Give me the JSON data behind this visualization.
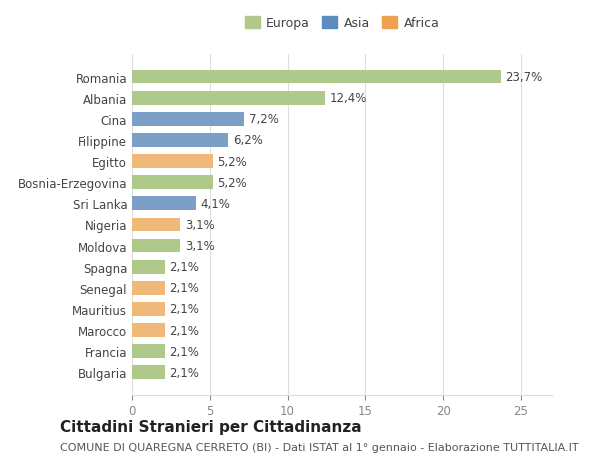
{
  "categories": [
    "Romania",
    "Albania",
    "Cina",
    "Filippine",
    "Egitto",
    "Bosnia-Erzegovina",
    "Sri Lanka",
    "Nigeria",
    "Moldova",
    "Spagna",
    "Senegal",
    "Mauritius",
    "Marocco",
    "Francia",
    "Bulgaria"
  ],
  "values": [
    23.7,
    12.4,
    7.2,
    6.2,
    5.2,
    5.2,
    4.1,
    3.1,
    3.1,
    2.1,
    2.1,
    2.1,
    2.1,
    2.1,
    2.1
  ],
  "labels": [
    "23,7%",
    "12,4%",
    "7,2%",
    "6,2%",
    "5,2%",
    "5,2%",
    "4,1%",
    "3,1%",
    "3,1%",
    "2,1%",
    "2,1%",
    "2,1%",
    "2,1%",
    "2,1%",
    "2,1%"
  ],
  "continents": [
    "Europa",
    "Europa",
    "Asia",
    "Asia",
    "Africa",
    "Europa",
    "Asia",
    "Africa",
    "Europa",
    "Europa",
    "Africa",
    "Africa",
    "Africa",
    "Europa",
    "Europa"
  ],
  "colors": {
    "Europa": "#aec98a",
    "Asia": "#7b9fc7",
    "Africa": "#f0b97a"
  },
  "legend_colors": {
    "Europa": "#aec98a",
    "Asia": "#5b8bbf",
    "Africa": "#f0a050"
  },
  "bg_color": "#ffffff",
  "grid_color": "#dddddd",
  "title_main": "Cittadini Stranieri per Cittadinanza",
  "title_sub": "COMUNE DI QUAREGNA CERRETO (BI) - Dati ISTAT al 1° gennaio - Elaborazione TUTTITALIA.IT",
  "xlim": [
    0,
    27
  ],
  "xticks": [
    0,
    5,
    10,
    15,
    20,
    25
  ],
  "bar_height": 0.65,
  "label_fontsize": 8.5,
  "tick_fontsize": 8.5,
  "legend_fontsize": 9,
  "title_fontsize": 11,
  "subtitle_fontsize": 8
}
